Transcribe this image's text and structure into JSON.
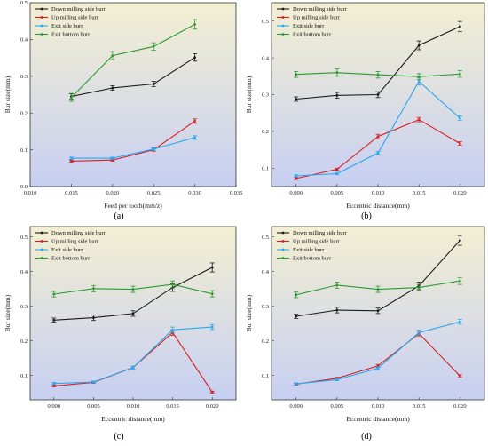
{
  "colors": {
    "down_milling": "#1a1a1a",
    "up_milling": "#d42020",
    "exit_side": "#2aa8ee",
    "exit_bottom": "#2e9a2e",
    "bg_top": "#f3efd2",
    "bg_bottom": "#c7cff2"
  },
  "chart_data": [
    {
      "type": "line",
      "panel": "a",
      "caption": "(a)",
      "xlabel": "Feed per tooth(mm/z)",
      "ylabel": "Bur size(mm)",
      "xlim": [
        0.01,
        0.035
      ],
      "ylim": [
        0.0,
        0.5
      ],
      "x_ticks": [
        "0.010",
        "0.015",
        "0.020",
        "0.025",
        "0.030",
        "0.035"
      ],
      "y_ticks": [
        "0.0",
        "0.1",
        "0.2",
        "0.3",
        "0.4",
        "0.5"
      ],
      "x": [
        0.015,
        0.02,
        0.025,
        0.03
      ],
      "series": [
        {
          "name": "Down milling side burr",
          "color": "#1a1a1a",
          "values": [
            0.245,
            0.268,
            0.279,
            0.351
          ],
          "err": [
            0.008,
            0.006,
            0.007,
            0.01
          ]
        },
        {
          "name": "Up milling side burr",
          "color": "#d42020",
          "values": [
            0.069,
            0.072,
            0.1,
            0.178
          ],
          "err": [
            0.003,
            0.003,
            0.004,
            0.006
          ]
        },
        {
          "name": "Exit side burr",
          "color": "#2aa8ee",
          "values": [
            0.077,
            0.077,
            0.102,
            0.133
          ],
          "err": [
            0.003,
            0.003,
            0.004,
            0.005
          ]
        },
        {
          "name": "Exit bottom burr",
          "color": "#2e9a2e",
          "values": [
            0.242,
            0.356,
            0.381,
            0.441
          ],
          "err": [
            0.01,
            0.011,
            0.01,
            0.013
          ]
        }
      ]
    },
    {
      "type": "line",
      "panel": "b",
      "caption": "(b)",
      "xlabel": "Eccentric distance(mm)",
      "ylabel": "Bur size(mm)",
      "xlim": [
        -0.003,
        0.023
      ],
      "ylim": [
        0.05,
        0.55
      ],
      "x_ticks": [
        "0.000",
        "0.005",
        "0.010",
        "0.015",
        "0.020"
      ],
      "y_ticks": [
        "0.1",
        "0.2",
        "0.3",
        "0.4",
        "0.5"
      ],
      "x": [
        0.0,
        0.005,
        0.01,
        0.015,
        0.02
      ],
      "series": [
        {
          "name": "Down milling side burr",
          "color": "#1a1a1a",
          "values": [
            0.288,
            0.298,
            0.3,
            0.434,
            0.485
          ],
          "err": [
            0.006,
            0.008,
            0.008,
            0.012,
            0.014
          ]
        },
        {
          "name": "Up milling side burr",
          "color": "#d42020",
          "values": [
            0.072,
            0.097,
            0.186,
            0.232,
            0.167
          ],
          "err": [
            0.003,
            0.003,
            0.006,
            0.006,
            0.005
          ]
        },
        {
          "name": "Exit side burr",
          "color": "#2aa8ee",
          "values": [
            0.079,
            0.085,
            0.141,
            0.336,
            0.236
          ],
          "err": [
            0.003,
            0.003,
            0.004,
            0.01,
            0.006
          ]
        },
        {
          "name": "Exit bottom burr",
          "color": "#2e9a2e",
          "values": [
            0.355,
            0.36,
            0.354,
            0.349,
            0.356
          ],
          "err": [
            0.008,
            0.01,
            0.009,
            0.008,
            0.009
          ]
        }
      ]
    },
    {
      "type": "line",
      "panel": "c",
      "caption": "(c)",
      "xlabel": "Eccentric distance(mm)",
      "ylabel": "Bur size(mm)",
      "xlim": [
        -0.003,
        0.023
      ],
      "ylim": [
        0.03,
        0.53
      ],
      "x_ticks": [
        "0.000",
        "0.005",
        "0.010",
        "0.015",
        "0.020"
      ],
      "y_ticks": [
        "0.1",
        "0.2",
        "0.3",
        "0.4",
        "0.5"
      ],
      "x": [
        0.0,
        0.005,
        0.01,
        0.015,
        0.02
      ],
      "series": [
        {
          "name": "Down milling side burr",
          "color": "#1a1a1a",
          "values": [
            0.26,
            0.267,
            0.279,
            0.354,
            0.412
          ],
          "err": [
            0.006,
            0.008,
            0.008,
            0.011,
            0.013
          ]
        },
        {
          "name": "Up milling side burr",
          "color": "#d42020",
          "values": [
            0.07,
            0.08,
            0.123,
            0.224,
            0.052
          ],
          "err": [
            0.003,
            0.003,
            0.004,
            0.008,
            0.003
          ]
        },
        {
          "name": "Exit side burr",
          "color": "#2aa8ee",
          "values": [
            0.077,
            0.081,
            0.123,
            0.232,
            0.24
          ],
          "err": [
            0.003,
            0.003,
            0.004,
            0.008,
            0.007
          ]
        },
        {
          "name": "Exit bottom burr",
          "color": "#2e9a2e",
          "values": [
            0.335,
            0.351,
            0.349,
            0.363,
            0.336
          ],
          "err": [
            0.008,
            0.009,
            0.009,
            0.01,
            0.009
          ]
        }
      ]
    },
    {
      "type": "line",
      "panel": "d",
      "caption": "(d)",
      "xlabel": "Eccentric distance(mm)",
      "ylabel": "Bur size(mm)",
      "xlim": [
        -0.003,
        0.023
      ],
      "ylim": [
        0.03,
        0.53
      ],
      "x_ticks": [
        "0.000",
        "0.005",
        "0.010",
        "0.015",
        "0.020"
      ],
      "y_ticks": [
        "0.1",
        "0.2",
        "0.3",
        "0.4",
        "0.5"
      ],
      "x": [
        0.0,
        0.005,
        0.01,
        0.015,
        0.02
      ],
      "series": [
        {
          "name": "Down milling side burr",
          "color": "#1a1a1a",
          "values": [
            0.271,
            0.289,
            0.287,
            0.359,
            0.49
          ],
          "err": [
            0.006,
            0.008,
            0.008,
            0.011,
            0.014
          ]
        },
        {
          "name": "Up milling side burr",
          "color": "#d42020",
          "values": [
            0.075,
            0.092,
            0.128,
            0.221,
            0.099
          ],
          "err": [
            0.003,
            0.003,
            0.004,
            0.007,
            0.003
          ]
        },
        {
          "name": "Exit side burr",
          "color": "#2aa8ee",
          "values": [
            0.076,
            0.088,
            0.121,
            0.224,
            0.255
          ],
          "err": [
            0.003,
            0.003,
            0.004,
            0.007,
            0.007
          ]
        },
        {
          "name": "Exit bottom burr",
          "color": "#2e9a2e",
          "values": [
            0.333,
            0.361,
            0.349,
            0.354,
            0.373
          ],
          "err": [
            0.008,
            0.009,
            0.009,
            0.009,
            0.01
          ]
        }
      ]
    }
  ]
}
